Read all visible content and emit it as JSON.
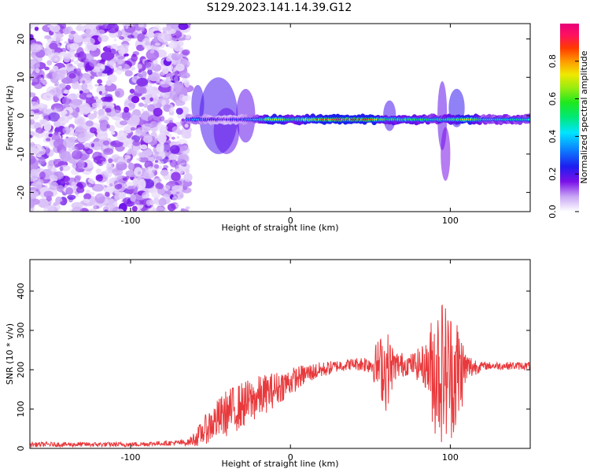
{
  "figure": {
    "title": "S129.2023.141.14.39.G12"
  },
  "chart_data": [
    {
      "type": "heatmap",
      "title": "S129.2023.141.14.39.G12",
      "xlabel": "Height of straight line (km)",
      "ylabel": "Frequency (Hz)",
      "xlim": [
        -163,
        150
      ],
      "ylim": [
        -25,
        24
      ],
      "xticks": [
        -100,
        0,
        100
      ],
      "xtick_labels": [
        "-100",
        "0",
        "100"
      ],
      "yticks": [
        -20,
        -10,
        0,
        10,
        20
      ],
      "ytick_labels": [
        "-20",
        "-10",
        "0",
        "10",
        "20"
      ],
      "noise_region_x": [
        -163,
        -64
      ],
      "line_frequency_hz": -1,
      "line_profile": [
        {
          "x": -64,
          "amp": 0.3
        },
        {
          "x": -58,
          "amp": 0.35
        },
        {
          "x": -50,
          "amp": 0.25
        },
        {
          "x": -40,
          "amp": 0.2
        },
        {
          "x": -30,
          "amp": 0.3
        },
        {
          "x": -20,
          "amp": 0.45
        },
        {
          "x": -10,
          "amp": 0.8
        },
        {
          "x": 0,
          "amp": 0.55
        },
        {
          "x": 10,
          "amp": 0.7
        },
        {
          "x": 20,
          "amp": 0.85
        },
        {
          "x": 30,
          "amp": 0.9
        },
        {
          "x": 40,
          "amp": 0.9
        },
        {
          "x": 50,
          "amp": 0.85
        },
        {
          "x": 60,
          "amp": 0.55
        },
        {
          "x": 70,
          "amp": 0.6
        },
        {
          "x": 80,
          "amp": 0.55
        },
        {
          "x": 90,
          "amp": 0.5
        },
        {
          "x": 100,
          "amp": 0.55
        },
        {
          "x": 110,
          "amp": 0.8
        },
        {
          "x": 120,
          "amp": 0.45
        },
        {
          "x": 130,
          "amp": 0.45
        },
        {
          "x": 140,
          "amp": 0.45
        },
        {
          "x": 150,
          "amp": 0.45
        }
      ],
      "colorbar": {
        "label": "Normalized spectral amplitude",
        "range": [
          0,
          1
        ],
        "ticks": [
          0,
          0.2,
          0.4,
          0.6,
          0.8
        ],
        "tick_labels": [
          "0.0",
          "0.2",
          "0.4",
          "0.6",
          "0.8"
        ]
      },
      "legend": "none",
      "grid": false
    },
    {
      "type": "line",
      "title": "",
      "xlabel": "Height of straight line (km)",
      "ylabel": "SNR (10 * v/v)",
      "xlim": [
        -163,
        150
      ],
      "ylim": [
        0,
        480
      ],
      "xticks": [
        -100,
        0,
        100
      ],
      "xtick_labels": [
        "-100",
        "0",
        "100"
      ],
      "yticks": [
        0,
        100,
        200,
        300,
        400
      ],
      "ytick_labels": [
        "0",
        "100",
        "200",
        "300",
        "400"
      ],
      "legend": "none",
      "grid": false,
      "series": [
        {
          "color": "#e8393c",
          "envelope": [
            {
              "x": -163,
              "base": 10,
              "amp": 6
            },
            {
              "x": -130,
              "base": 10,
              "amp": 6
            },
            {
              "x": -100,
              "base": 10,
              "amp": 6
            },
            {
              "x": -80,
              "base": 13,
              "amp": 6
            },
            {
              "x": -64,
              "base": 15,
              "amp": 8
            },
            {
              "x": -58,
              "base": 30,
              "amp": 25
            },
            {
              "x": -50,
              "base": 60,
              "amp": 45
            },
            {
              "x": -40,
              "base": 90,
              "amp": 60
            },
            {
              "x": -30,
              "base": 110,
              "amp": 60
            },
            {
              "x": -20,
              "base": 130,
              "amp": 55
            },
            {
              "x": -10,
              "base": 150,
              "amp": 45
            },
            {
              "x": 0,
              "base": 170,
              "amp": 35
            },
            {
              "x": 10,
              "base": 190,
              "amp": 25
            },
            {
              "x": 20,
              "base": 200,
              "amp": 20
            },
            {
              "x": 30,
              "base": 210,
              "amp": 15
            },
            {
              "x": 40,
              "base": 215,
              "amp": 15
            },
            {
              "x": 50,
              "base": 215,
              "amp": 25
            },
            {
              "x": 55,
              "base": 210,
              "amp": 70
            },
            {
              "x": 60,
              "base": 200,
              "amp": 110
            },
            {
              "x": 65,
              "base": 210,
              "amp": 40
            },
            {
              "x": 75,
              "base": 215,
              "amp": 25
            },
            {
              "x": 85,
              "base": 210,
              "amp": 60
            },
            {
              "x": 90,
              "base": 200,
              "amp": 170
            },
            {
              "x": 95,
              "base": 200,
              "amp": 190
            },
            {
              "x": 100,
              "base": 190,
              "amp": 170
            },
            {
              "x": 105,
              "base": 190,
              "amp": 150
            },
            {
              "x": 110,
              "base": 205,
              "amp": 40
            },
            {
              "x": 120,
              "base": 210,
              "amp": 10
            },
            {
              "x": 150,
              "base": 210,
              "amp": 10
            }
          ]
        }
      ]
    }
  ]
}
